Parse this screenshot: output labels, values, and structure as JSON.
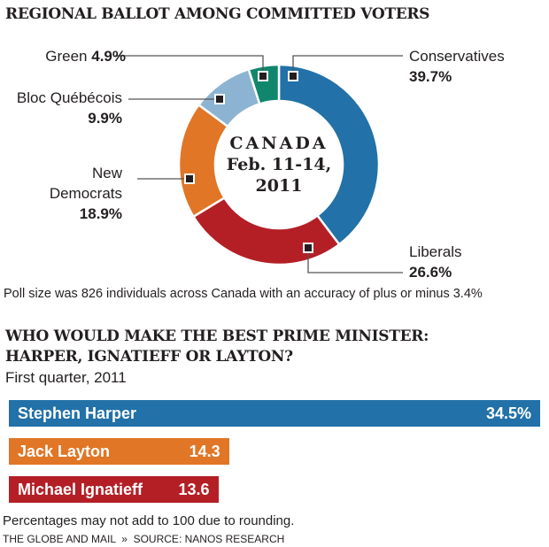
{
  "title1": "REGIONAL BALLOT AMONG COMMITTED VOTERS",
  "center": {
    "line1": "CANADA",
    "line2": "Feb. 11-14,",
    "line3": "2011"
  },
  "poll_note": "Poll size was 826 individuals across Canada with an accuracy of plus or minus 3.4%",
  "title2_line1": "WHO WOULD MAKE THE BEST PRIME MINISTER:",
  "title2_line2": "HARPER, IGNATIEFF OR LAYTON?",
  "subtitle2": "First quarter, 2011",
  "footnote": "Percentages may not add to 100 due to rounding.",
  "source": "THE GLOBE AND MAIL  »  SOURCE: NANOS RESEARCH",
  "chart_data": [
    {
      "type": "pie",
      "variant": "donut",
      "title": "REGIONAL BALLOT AMONG COMMITTED VOTERS",
      "slices": [
        {
          "name": "Conservatives",
          "value": 39.7,
          "label": "39.7%",
          "color": "#2271a8"
        },
        {
          "name": "Liberals",
          "value": 26.6,
          "label": "26.6%",
          "color": "#b41f26"
        },
        {
          "name": "New Democrats",
          "value": 18.9,
          "label": "18.9%",
          "color": "#e07626"
        },
        {
          "name": "Bloc Québécois",
          "value": 9.9,
          "label": "9.9%",
          "color": "#8cb4d2"
        },
        {
          "name": "Green",
          "value": 4.9,
          "label": "4.9%",
          "color": "#10876c"
        }
      ]
    },
    {
      "type": "bar",
      "orientation": "horizontal",
      "title": "WHO WOULD MAKE THE BEST PRIME MINISTER: HARPER, IGNATIEFF OR LAYTON?",
      "categories": [
        "Stephen Harper",
        "Jack Layton",
        "Michael Ignatieff"
      ],
      "values": [
        34.5,
        14.3,
        13.6
      ],
      "labels": [
        "34.5%",
        "14.3",
        "13.6"
      ],
      "colors": [
        "#2271a8",
        "#e07626",
        "#b41f26"
      ]
    }
  ]
}
